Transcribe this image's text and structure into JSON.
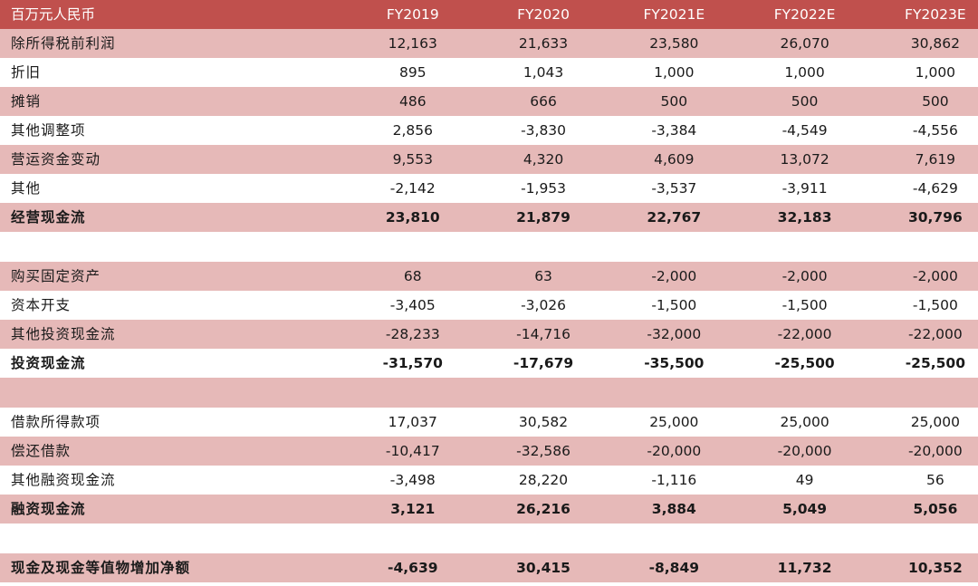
{
  "header": {
    "label": "百万元人民币",
    "years": [
      "FY2019",
      "FY2020",
      "FY2021E",
      "FY2022E",
      "FY2023E"
    ]
  },
  "rows": [
    {
      "label": "除所得税前利润",
      "values": [
        "12,163",
        "21,633",
        "23,580",
        "26,070",
        "30,862"
      ]
    },
    {
      "label": "折旧",
      "values": [
        "895",
        "1,043",
        "1,000",
        "1,000",
        "1,000"
      ]
    },
    {
      "label": "摊销",
      "values": [
        "486",
        "666",
        "500",
        "500",
        "500"
      ]
    },
    {
      "label": "其他调整项",
      "values": [
        "2,856",
        "-3,830",
        "-3,384",
        "-4,549",
        "-4,556"
      ]
    },
    {
      "label": "营运资金变动",
      "values": [
        "9,553",
        "4,320",
        "4,609",
        "13,072",
        "7,619"
      ]
    },
    {
      "label": "其他",
      "values": [
        "-2,142",
        "-1,953",
        "-3,537",
        "-3,911",
        "-4,629"
      ]
    },
    {
      "label": "经营现金流",
      "values": [
        "23,810",
        "21,879",
        "22,767",
        "32,183",
        "30,796"
      ]
    },
    {
      "label": "",
      "values": [
        "",
        "",
        "",
        "",
        ""
      ]
    },
    {
      "label": "购买固定资产",
      "values": [
        "68",
        "63",
        "-2,000",
        "-2,000",
        "-2,000"
      ]
    },
    {
      "label": "资本开支",
      "values": [
        "-3,405",
        "-3,026",
        "-1,500",
        "-1,500",
        "-1,500"
      ]
    },
    {
      "label": "其他投资现金流",
      "values": [
        "-28,233",
        "-14,716",
        "-32,000",
        "-22,000",
        "-22,000"
      ]
    },
    {
      "label": "投资现金流",
      "values": [
        "-31,570",
        "-17,679",
        "-35,500",
        "-25,500",
        "-25,500"
      ]
    },
    {
      "label": "",
      "values": [
        "",
        "",
        "",
        "",
        ""
      ]
    },
    {
      "label": "借款所得款项",
      "values": [
        "17,037",
        "30,582",
        "25,000",
        "25,000",
        "25,000"
      ]
    },
    {
      "label": "偿还借款",
      "values": [
        "-10,417",
        "-32,586",
        "-20,000",
        "-20,000",
        "-20,000"
      ]
    },
    {
      "label": "其他融资现金流",
      "values": [
        "-3,498",
        "28,220",
        "-1,116",
        "49",
        "56"
      ]
    },
    {
      "label": "融资现金流",
      "values": [
        "3,121",
        "26,216",
        "3,884",
        "5,049",
        "5,056"
      ]
    },
    {
      "label": "",
      "values": [
        "",
        "",
        "",
        "",
        ""
      ]
    },
    {
      "label": "现金及现金等值物增加净额",
      "values": [
        "-4,639",
        "30,415",
        "-8,849",
        "11,732",
        "10,352"
      ]
    }
  ]
}
